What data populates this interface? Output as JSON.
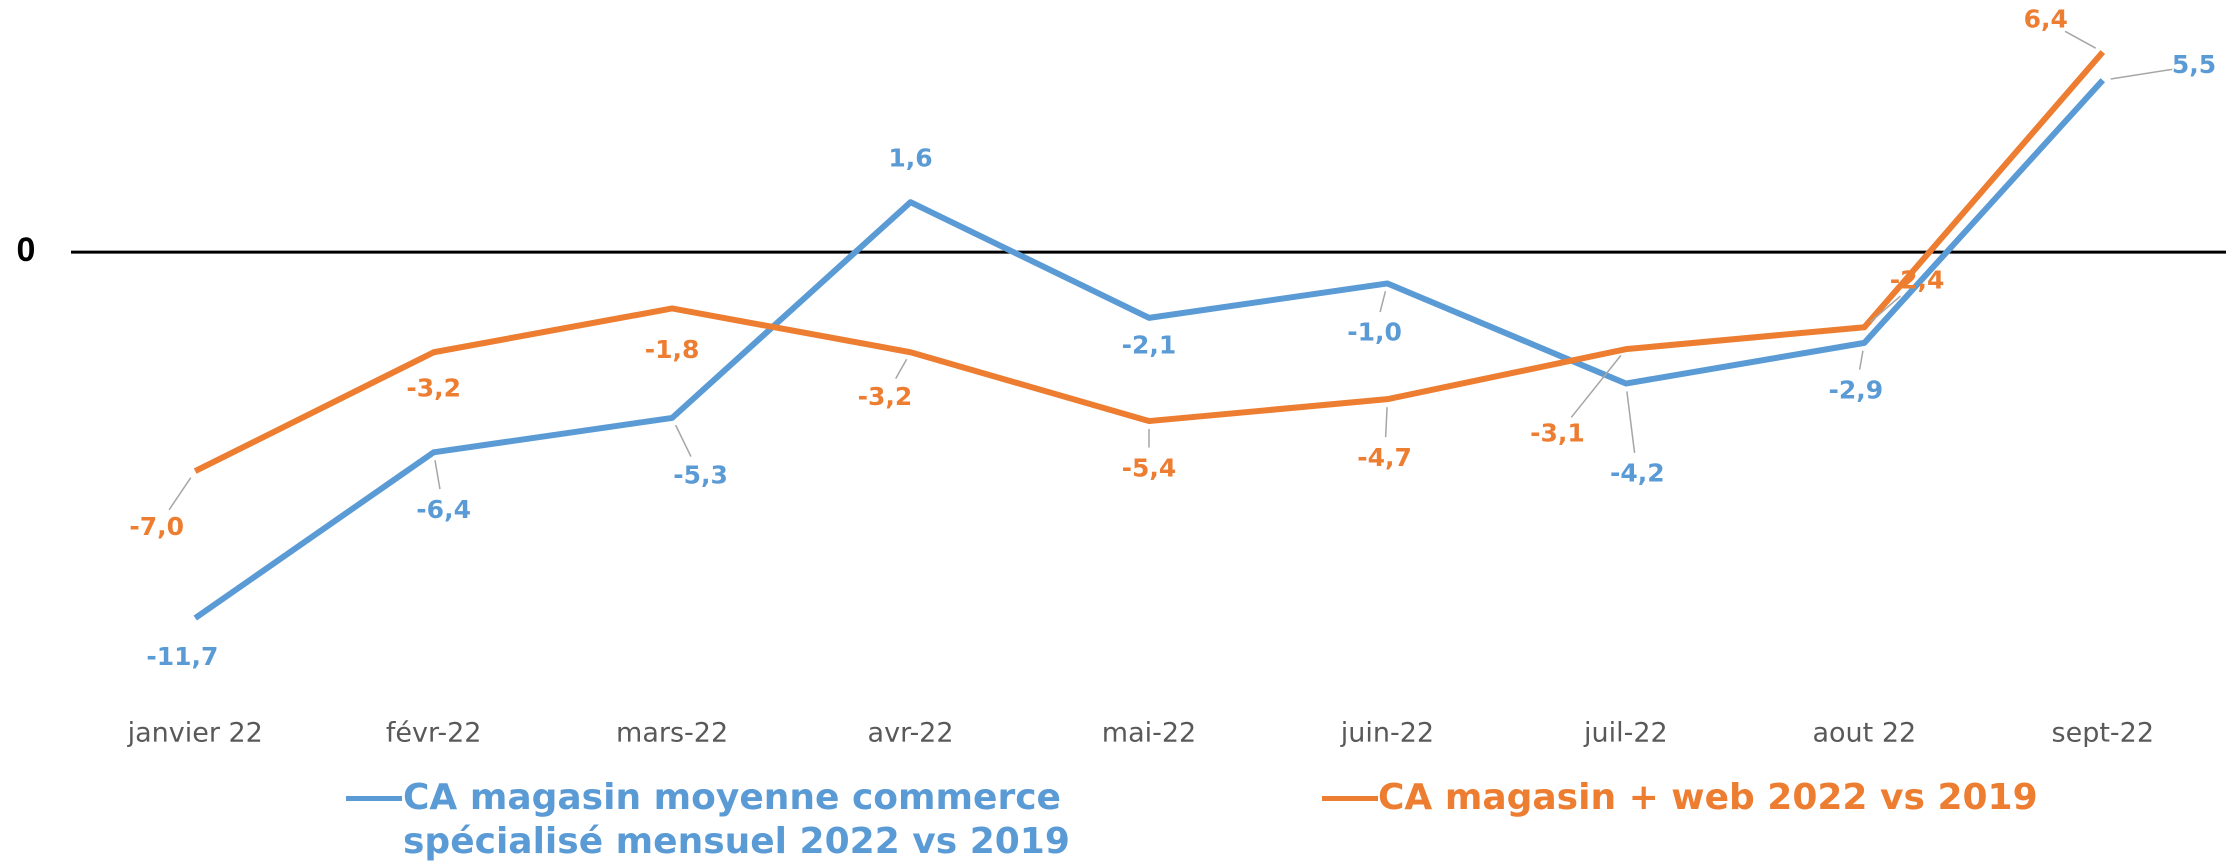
{
  "chart_data": {
    "type": "line",
    "categories": [
      "janvier 22",
      "févr-22",
      "mars-22",
      "avr-22",
      "mai-22",
      "juin-22",
      "juil-22",
      "aout 22",
      "sept-22"
    ],
    "series": [
      {
        "name": "CA magasin moyenne commerce spécialisé mensuel 2022 vs 2019",
        "color": "#5b9bd5",
        "values": [
          -11.7,
          -6.4,
          -5.3,
          1.6,
          -2.1,
          -1.0,
          -4.2,
          -2.9,
          5.5
        ],
        "value_labels": [
          "-11,7",
          "-6,4",
          "-5,3",
          "1,6",
          "-2,1",
          "-1,0",
          "-4,2",
          "-2,9",
          "5,5"
        ]
      },
      {
        "name": "CA magasin + web 2022 vs 2019",
        "color": "#ed7d31",
        "values": [
          -7.0,
          -3.2,
          -1.8,
          -3.2,
          -5.4,
          -4.7,
          -3.1,
          -2.4,
          6.4
        ],
        "value_labels": [
          "-7,0",
          "-3,2",
          "-1,8",
          "-3,2",
          "-5,4",
          "-4,7",
          "-3,1",
          "-2,4",
          "6,4"
        ]
      }
    ],
    "ylim": [
      -14,
      8
    ],
    "yticks": [
      0
    ]
  }
}
